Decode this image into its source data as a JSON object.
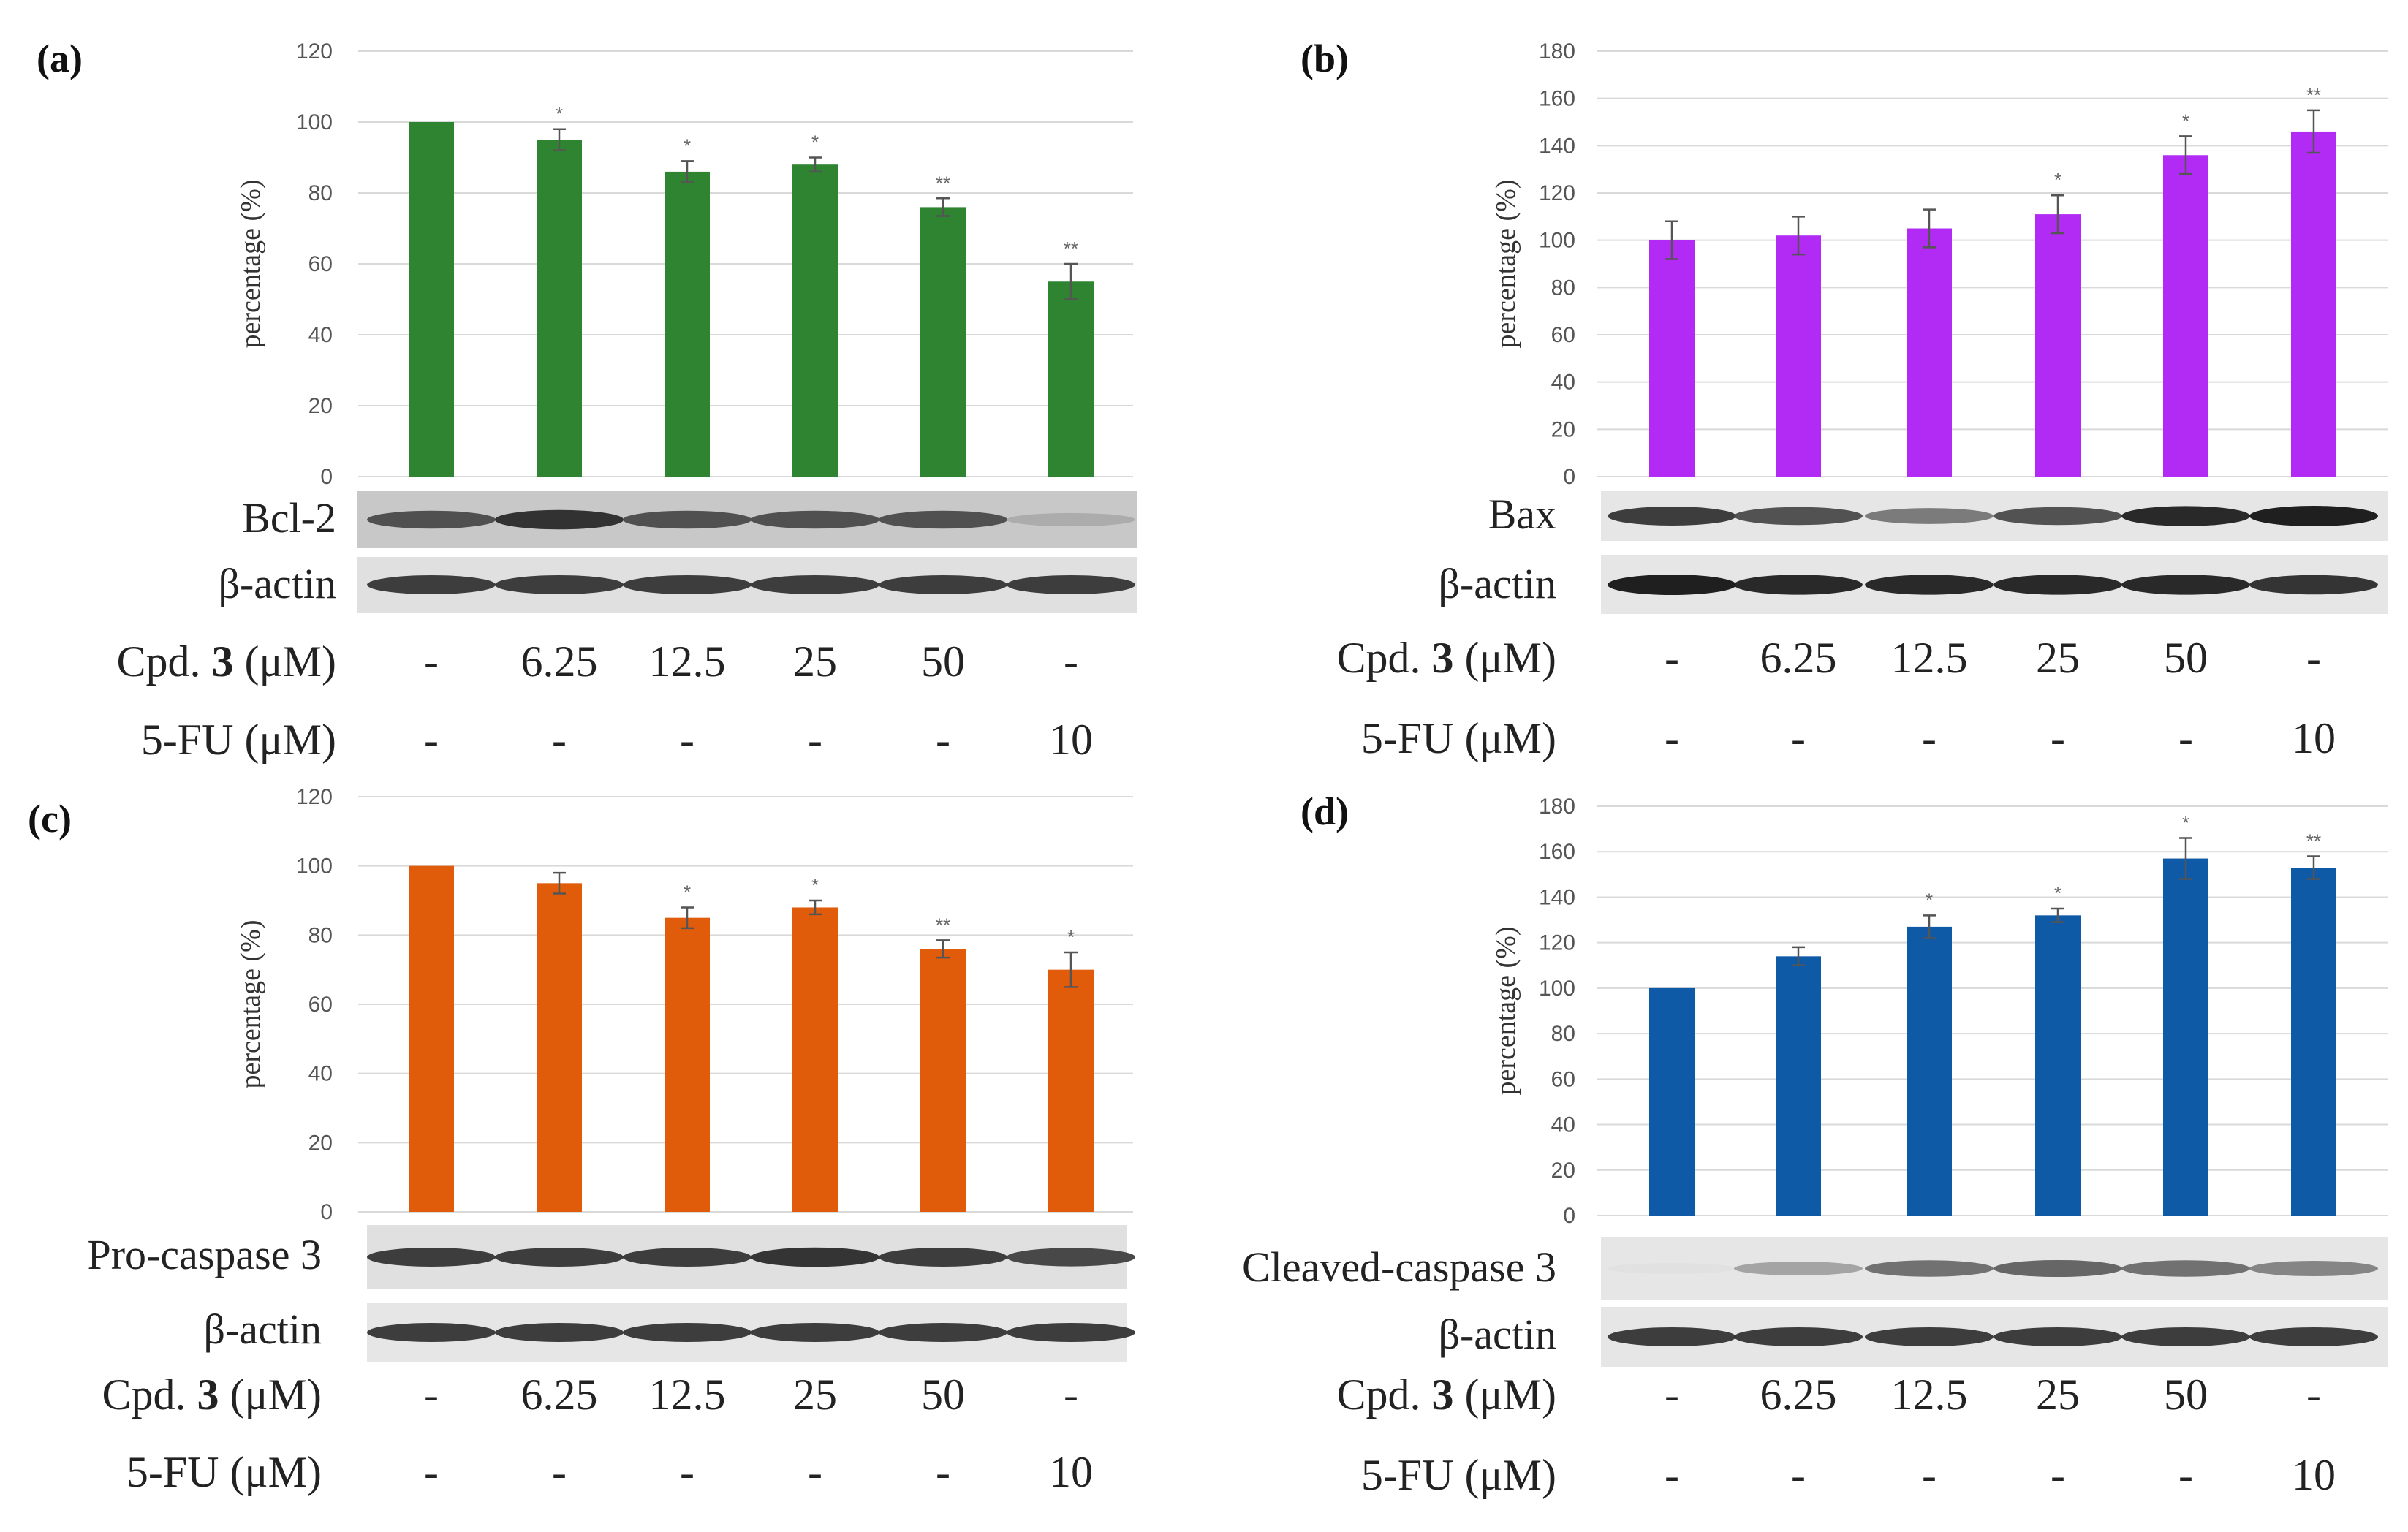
{
  "chart_data": [
    {
      "id": "a",
      "type": "bar",
      "panel_label": "(a)",
      "ylabel": "percentage (%)",
      "ylim": [
        0,
        120
      ],
      "yticks": [
        "0",
        "20",
        "40",
        "60",
        "80",
        "100",
        "120"
      ],
      "color": "#2e8431",
      "values": [
        100,
        95,
        86,
        88,
        76,
        55
      ],
      "errors": [
        0,
        3,
        3,
        2,
        2.5,
        5
      ],
      "significance": [
        "",
        "*",
        "*",
        "*",
        "**",
        "**"
      ],
      "blots": [
        {
          "label": "Bcl-2",
          "intensity": [
            0.75,
            0.9,
            0.75,
            0.75,
            0.75,
            0.3
          ],
          "background": "#c8c8c8"
        },
        {
          "label": "β-actin",
          "intensity": [
            0.85,
            0.85,
            0.85,
            0.85,
            0.85,
            0.85
          ],
          "background": "#e0e0e0"
        }
      ],
      "treatments": [
        {
          "label_prefix": "Cpd. ",
          "label_bold": "3",
          "label_suffix": " (μM)",
          "values": [
            "-",
            "6.25",
            "12.5",
            "25",
            "50",
            "-"
          ]
        },
        {
          "label_prefix": "5-FU (μM)",
          "label_bold": "",
          "label_suffix": "",
          "values": [
            "-",
            "-",
            "-",
            "-",
            "-",
            "10"
          ]
        }
      ]
    },
    {
      "id": "b",
      "type": "bar",
      "panel_label": "(b)",
      "ylabel": "percentage (%)",
      "ylim": [
        0,
        180
      ],
      "yticks": [
        "0",
        "20",
        "40",
        "60",
        "80",
        "100",
        "120",
        "140",
        "160",
        "180"
      ],
      "color": "#b12bf5",
      "values": [
        100,
        102,
        105,
        111,
        136,
        146
      ],
      "errors": [
        8,
        8,
        8,
        8,
        8,
        9
      ],
      "significance": [
        "",
        "",
        "",
        "*",
        "*",
        "**"
      ],
      "blots": [
        {
          "label": "Bax",
          "intensity": [
            0.85,
            0.75,
            0.55,
            0.75,
            0.95,
            1.0
          ],
          "background": "#e6e6e6"
        },
        {
          "label": "β-actin",
          "intensity": [
            1.0,
            0.95,
            0.95,
            0.95,
            0.95,
            0.9
          ],
          "background": "#e6e6e6"
        }
      ],
      "treatments": [
        {
          "label_prefix": "Cpd. ",
          "label_bold": "3",
          "label_suffix": " (μM)",
          "values": [
            "-",
            "6.25",
            "12.5",
            "25",
            "50",
            "-"
          ]
        },
        {
          "label_prefix": "5-FU (μM)",
          "label_bold": "",
          "label_suffix": "",
          "values": [
            "-",
            "-",
            "-",
            "-",
            "-",
            "10"
          ]
        }
      ]
    },
    {
      "id": "c",
      "type": "bar",
      "panel_label": "(c)",
      "ylabel": "percentage (%)",
      "ylim": [
        0,
        120
      ],
      "yticks": [
        "0",
        "20",
        "40",
        "60",
        "80",
        "100",
        "120"
      ],
      "color": "#e05c0a",
      "values": [
        100,
        95,
        85,
        88,
        76,
        70
      ],
      "errors": [
        0,
        3,
        3,
        2,
        2.5,
        5
      ],
      "significance": [
        "",
        "",
        "*",
        "*",
        "**",
        "*"
      ],
      "blots": [
        {
          "label": "Pro-caspase 3",
          "intensity": [
            0.85,
            0.85,
            0.85,
            0.9,
            0.85,
            0.8
          ],
          "background": "#e0e0e0"
        },
        {
          "label": "β-actin",
          "intensity": [
            0.85,
            0.85,
            0.85,
            0.85,
            0.85,
            0.85
          ],
          "background": "#e6e6e6"
        }
      ],
      "treatments": [
        {
          "label_prefix": "Cpd. ",
          "label_bold": "3",
          "label_suffix": " (μM)",
          "values": [
            "-",
            "6.25",
            "12.5",
            "25",
            "50",
            "-"
          ]
        },
        {
          "label_prefix": "5-FU (μM)",
          "label_bold": "",
          "label_suffix": "",
          "values": [
            "-",
            "-",
            "-",
            "-",
            "-",
            "10"
          ]
        }
      ]
    },
    {
      "id": "d",
      "type": "bar",
      "panel_label": "(d)",
      "ylabel": "percentage (%)",
      "ylim": [
        0,
        180
      ],
      "yticks": [
        "0",
        "20",
        "40",
        "60",
        "80",
        "100",
        "120",
        "140",
        "160",
        "180"
      ],
      "color": "#0f5aa6",
      "values": [
        100,
        114,
        127,
        132,
        157,
        153
      ],
      "errors": [
        0,
        4,
        5,
        3,
        9,
        5
      ],
      "significance": [
        "",
        "",
        "*",
        "*",
        "*",
        "**"
      ],
      "blots": [
        {
          "label": "Cleaved-caspase 3",
          "intensity": [
            0.05,
            0.35,
            0.6,
            0.65,
            0.6,
            0.5
          ],
          "background": "#e6e6e6"
        },
        {
          "label": "β-actin",
          "intensity": [
            0.85,
            0.85,
            0.85,
            0.85,
            0.85,
            0.85
          ],
          "background": "#e6e6e6"
        }
      ],
      "treatments": [
        {
          "label_prefix": "Cpd. ",
          "label_bold": "3",
          "label_suffix": " (μM)",
          "values": [
            "-",
            "6.25",
            "12.5",
            "25",
            "50",
            "-"
          ]
        },
        {
          "label_prefix": "5-FU (μM)",
          "label_bold": "",
          "label_suffix": "",
          "values": [
            "-",
            "-",
            "-",
            "-",
            "-",
            "10"
          ]
        }
      ]
    }
  ]
}
